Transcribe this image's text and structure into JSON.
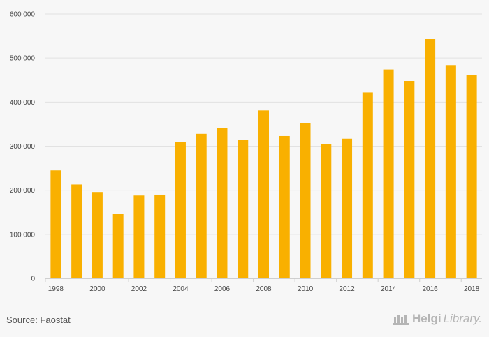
{
  "chart_data": {
    "type": "bar",
    "categories": [
      "1998",
      "1999",
      "2000",
      "2001",
      "2002",
      "2003",
      "2004",
      "2005",
      "2006",
      "2007",
      "2008",
      "2009",
      "2010",
      "2011",
      "2012",
      "2013",
      "2014",
      "2015",
      "2016",
      "2017",
      "2018"
    ],
    "values": [
      245000,
      213000,
      196000,
      147000,
      188000,
      190000,
      309000,
      328000,
      341000,
      315000,
      381000,
      323000,
      353000,
      304000,
      317000,
      422000,
      474000,
      448000,
      543000,
      484000,
      462000
    ],
    "x_tick_labels": [
      "1998",
      "2000",
      "2002",
      "2004",
      "2006",
      "2008",
      "2010",
      "2012",
      "2014",
      "2016",
      "2018"
    ],
    "y_ticks": [
      0,
      100000,
      200000,
      300000,
      400000,
      500000,
      600000
    ],
    "y_tick_labels": [
      "0",
      "100 000",
      "200 000",
      "300 000",
      "400 000",
      "500 000",
      "600 000"
    ],
    "ylim": [
      0,
      600000
    ],
    "title": "",
    "xlabel": "",
    "ylabel": "",
    "grid": true,
    "bar_color": "#f9b000",
    "grid_color": "#e2e2e2"
  },
  "footer": {
    "source": "Source: Faostat",
    "brand_name": "Helgi",
    "brand_suffix": "Library."
  }
}
